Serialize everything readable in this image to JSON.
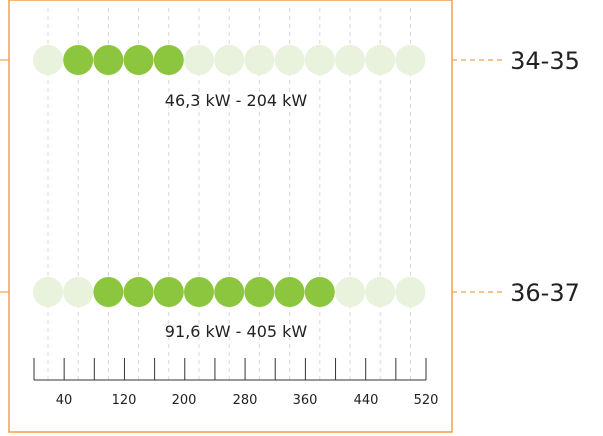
{
  "colors": {
    "frame": "#f0a04b",
    "active_dot": "#8cc63f",
    "inactive_dot": "#e8f2dc",
    "gridline": "#d9d9d9",
    "axis": "#333333",
    "text": "#222222"
  },
  "chart_data": {
    "type": "range-dots",
    "x_scale": {
      "dot_count": 13,
      "unit": "kW",
      "tick_labels": [
        "40",
        "120",
        "200",
        "280",
        "360",
        "440",
        "520"
      ]
    },
    "rows": [
      {
        "row_label": "34-35",
        "range_text": "46,3 kW - 204 kW",
        "range_min_kw": 46.3,
        "range_max_kw": 204,
        "active_dots": [
          1,
          2,
          3,
          4
        ]
      },
      {
        "row_label": "36-37",
        "range_text": "91,6 kW - 405 kW",
        "range_min_kw": 91.6,
        "range_max_kw": 405,
        "active_dots": [
          2,
          3,
          4,
          5,
          6,
          7,
          8,
          9
        ]
      }
    ]
  }
}
